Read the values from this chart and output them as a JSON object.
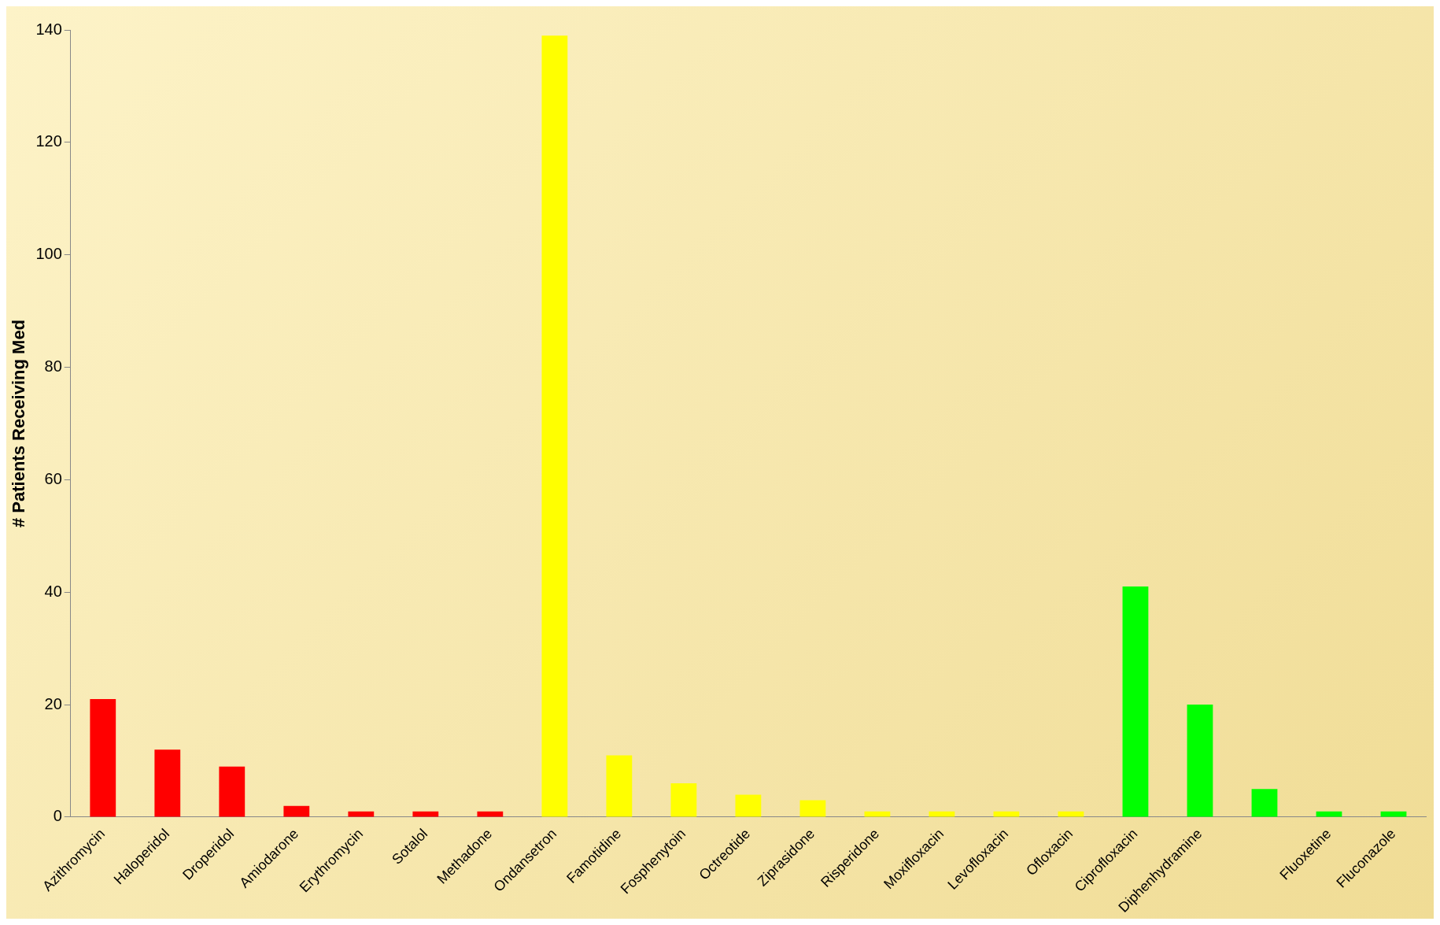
{
  "chart_data": {
    "type": "bar",
    "ylabel": "# Patients Receiving Med",
    "categories": [
      "Azithromycin",
      "Haloperidol",
      "Droperidol",
      "Amiodarone",
      "Erythromycin",
      "Sotalol",
      "Methadone",
      "Ondansetron",
      "Famotidine",
      "Fosphenytoin",
      "Octreotide",
      "Ziprasidone",
      "Risperidone",
      "Moxifloxacin",
      "Levofloxacin",
      "Ofloxacin",
      "Ciprofloxacin",
      "Diphenhydramine",
      null,
      "Fluoxetine",
      "Fluconazole"
    ],
    "values": [
      21,
      12,
      9,
      2,
      1,
      1,
      1,
      139,
      11,
      6,
      4,
      3,
      1,
      1,
      1,
      1,
      41,
      20,
      5,
      1,
      1
    ],
    "colors": [
      "#ff0000",
      "#ff0000",
      "#ff0000",
      "#ff0000",
      "#ff0000",
      "#ff0000",
      "#ff0000",
      "#ffff00",
      "#ffff00",
      "#ffff00",
      "#ffff00",
      "#ffff00",
      "#ffff00",
      "#ffff00",
      "#ffff00",
      "#ffff00",
      "#00ff00",
      "#00ff00",
      "#00ff00",
      "#00ff00",
      "#00ff00"
    ],
    "ylim": [
      0,
      140
    ],
    "yticks": [
      0,
      20,
      40,
      60,
      80,
      100,
      120,
      140
    ],
    "grid": false,
    "legend": false
  }
}
